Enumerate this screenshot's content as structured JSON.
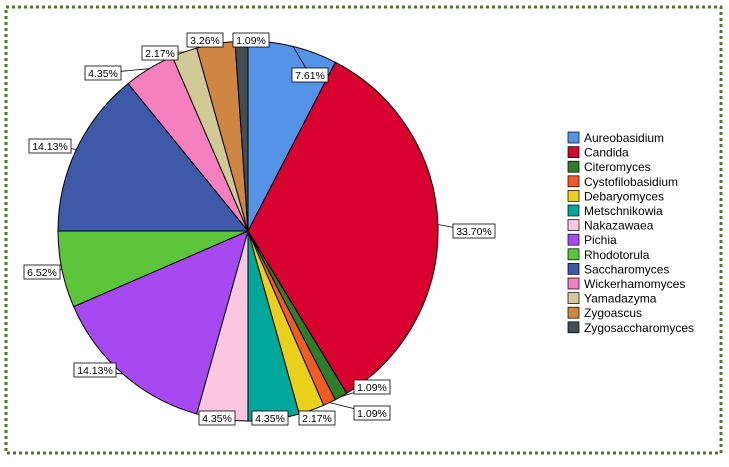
{
  "chart_data": {
    "type": "pie",
    "title": "",
    "slices": [
      {
        "name": "Aureobasidium",
        "value": 7.61,
        "label": "7.61%",
        "color": "#5593e6"
      },
      {
        "name": "Candida",
        "value": 33.7,
        "label": "33.70%",
        "color": "#d7002e"
      },
      {
        "name": "Citeromyces",
        "value": 1.09,
        "label": "1.09%",
        "color": "#2f7f2a"
      },
      {
        "name": "Cystofilobasidium",
        "value": 1.09,
        "label": "1.09%",
        "color": "#f05c24"
      },
      {
        "name": "Debaryomyces",
        "value": 2.17,
        "label": "2.17%",
        "color": "#e8d01b"
      },
      {
        "name": "Metschnikowia",
        "value": 4.35,
        "label": "4.35%",
        "color": "#00a79a"
      },
      {
        "name": "Nakazawaea",
        "value": 4.35,
        "label": "4.35%",
        "color": "#fbc6e0"
      },
      {
        "name": "Pichia",
        "value": 14.13,
        "label": "14.13%",
        "color": "#a749f0"
      },
      {
        "name": "Rhodotorula",
        "value": 6.52,
        "label": "6.52%",
        "color": "#5cc53b"
      },
      {
        "name": "Saccharomyces",
        "value": 14.13,
        "label": "14.13%",
        "color": "#3e59a7"
      },
      {
        "name": "Wickerhamomyces",
        "value": 4.35,
        "label": "4.35%",
        "color": "#f57fbf"
      },
      {
        "name": "Yamadazyma",
        "value": 2.17,
        "label": "2.17%",
        "color": "#d2ca96"
      },
      {
        "name": "Zygoascus",
        "value": 3.26,
        "label": "3.26%",
        "color": "#cf8642"
      },
      {
        "name": "Zygosaccharomyces",
        "value": 1.09,
        "label": "1.09%",
        "color": "#434f52"
      }
    ],
    "legend_position": "right",
    "start_angle_deg": 0,
    "direction": "clockwise"
  },
  "frame": {
    "border_color": "#4a7a2a"
  }
}
